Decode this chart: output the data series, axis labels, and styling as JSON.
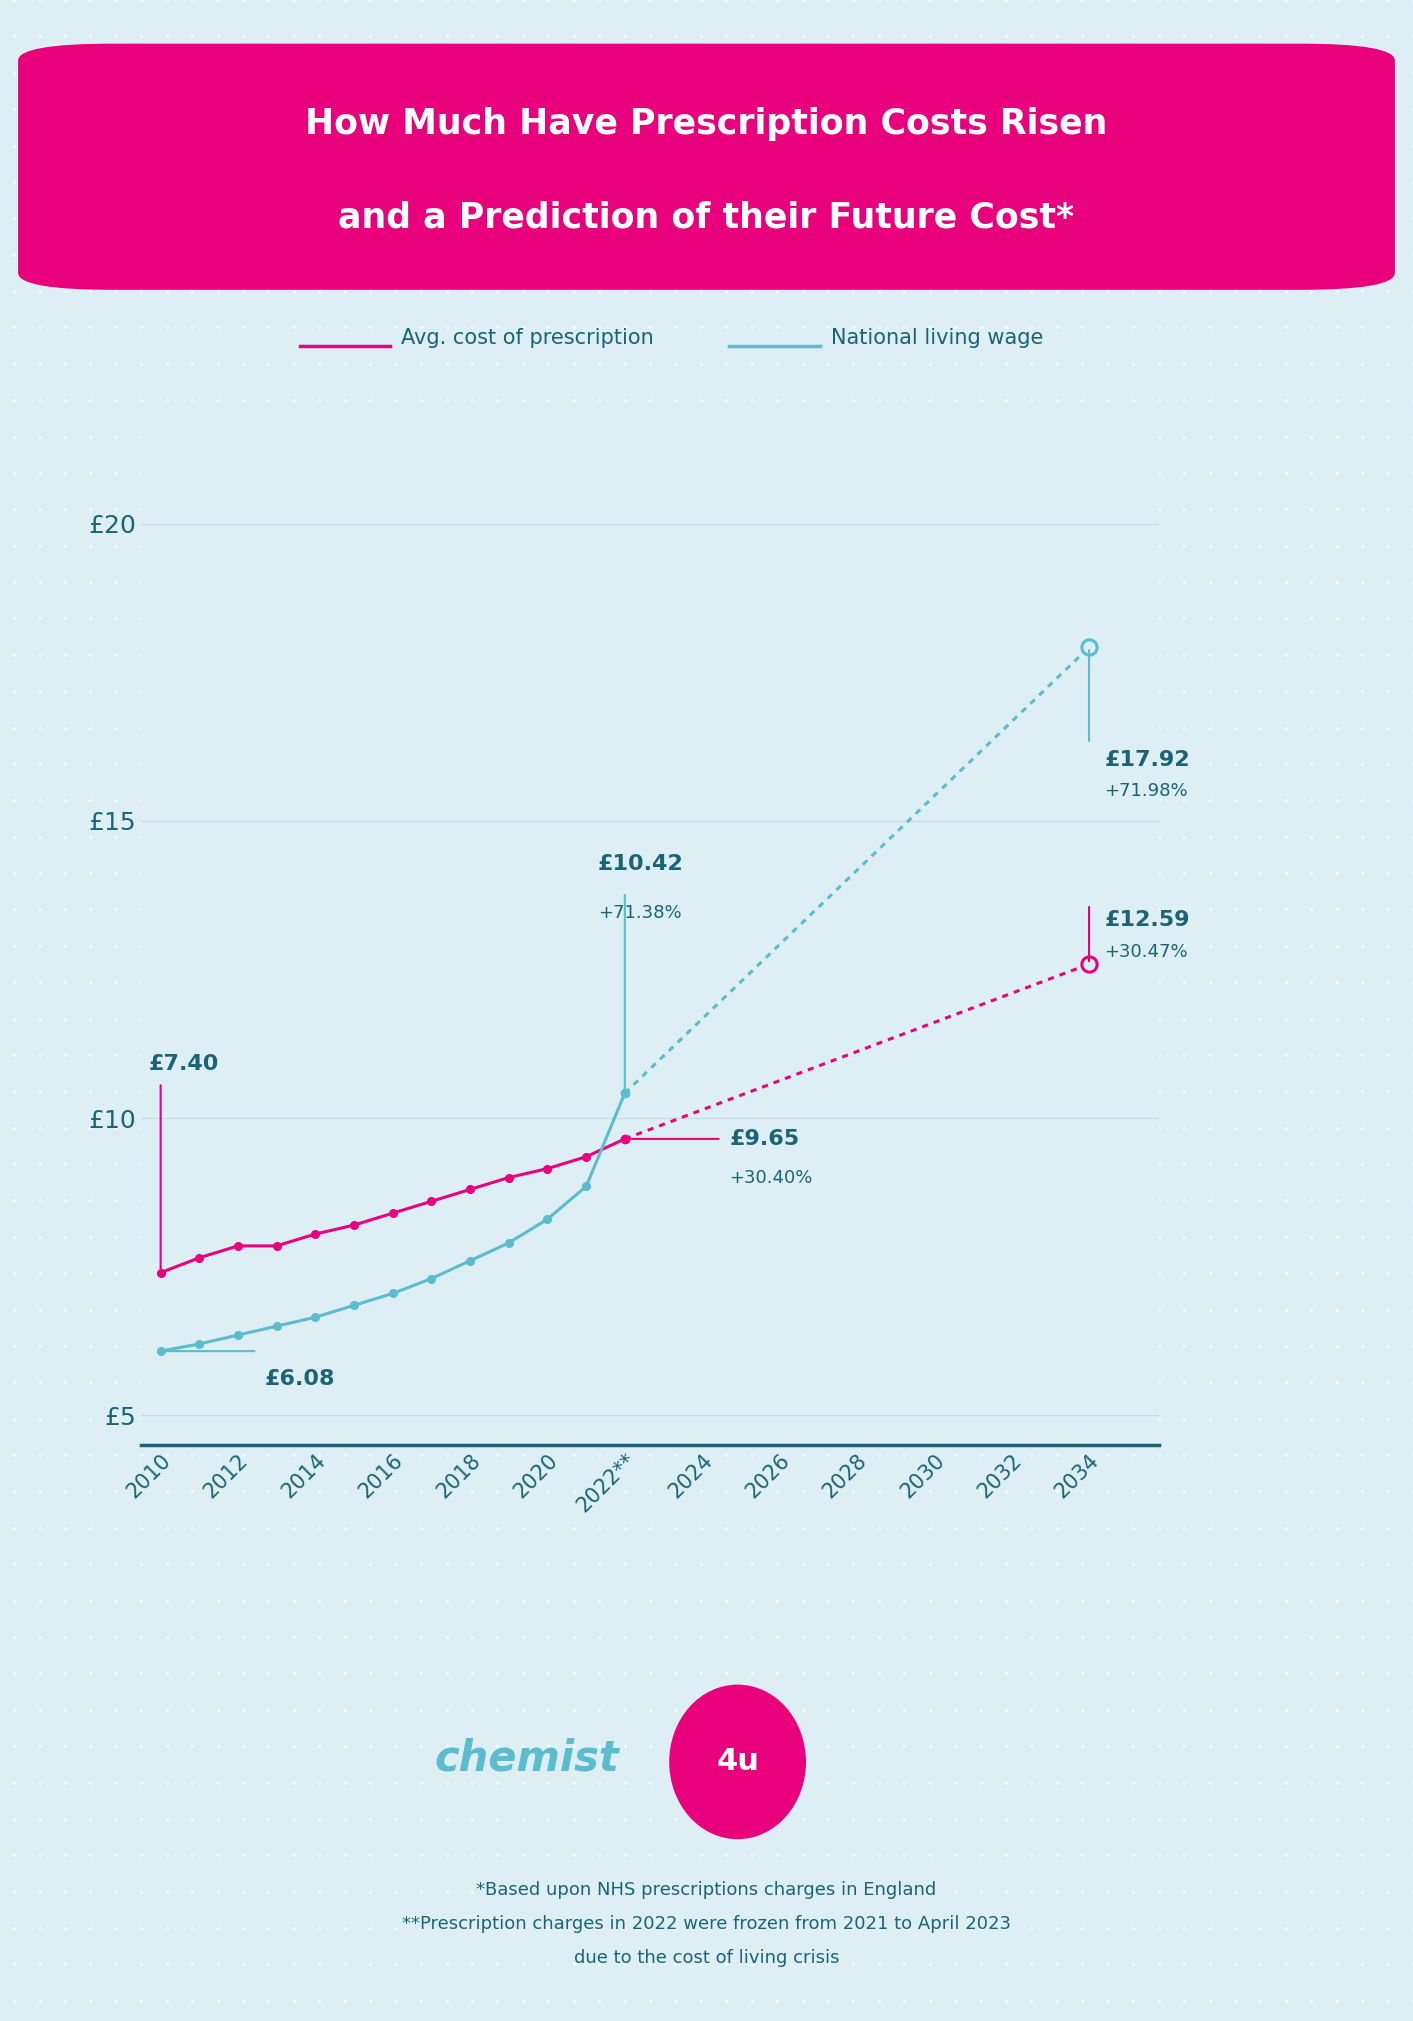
{
  "title_line1": "How Much Have Prescription Costs Risen",
  "title_line2": "and a Prediction of their Future Cost*",
  "bg_color": "#ddeef5",
  "plot_bg_color": "#ddeef5",
  "title_bg_color": "#e8007d",
  "title_text_color": "#ffffff",
  "legend_label1": "Avg. cost of prescription",
  "legend_label2": "National living wage",
  "pink_color": "#e8007d",
  "blue_color": "#5abccc",
  "dark_teal": "#1a6475",
  "grid_color": "#c5dde8",
  "footnote1": "*Based upon NHS prescriptions charges in England",
  "footnote2": "**Prescription charges in 2022 were frozen from 2021 to April 2023",
  "footnote3": "due to the cost of living crisis",
  "prescription_years": [
    2010,
    2011,
    2012,
    2013,
    2014,
    2015,
    2016,
    2017,
    2018,
    2019,
    2020,
    2021,
    2022
  ],
  "prescription_values": [
    7.4,
    7.65,
    7.85,
    7.85,
    8.05,
    8.2,
    8.4,
    8.6,
    8.8,
    9.0,
    9.15,
    9.35,
    9.65
  ],
  "prescription_forecast_years": [
    2022,
    2034
  ],
  "prescription_forecast_values": [
    9.65,
    12.59
  ],
  "wage_years": [
    2010,
    2011,
    2012,
    2013,
    2014,
    2015,
    2016,
    2017,
    2018,
    2019,
    2020,
    2021,
    2022
  ],
  "wage_values": [
    6.08,
    6.2,
    6.35,
    6.5,
    6.65,
    6.85,
    7.05,
    7.3,
    7.6,
    7.9,
    8.3,
    8.85,
    10.42
  ],
  "wage_forecast_years": [
    2022,
    2034
  ],
  "wage_forecast_values": [
    10.42,
    17.92
  ],
  "ylim": [
    4.5,
    21.5
  ],
  "xlim": [
    2009.5,
    2035.8
  ],
  "yticks": [
    5,
    10,
    15,
    20
  ],
  "ytick_labels": [
    "£5",
    "£10",
    "£15",
    "£20"
  ],
  "xtick_positions": [
    2010,
    2012,
    2014,
    2016,
    2018,
    2020,
    2022,
    2024,
    2026,
    2028,
    2030,
    2032,
    2034
  ],
  "xtick_labels": [
    "2010",
    "2012",
    "2014",
    "2016",
    "2018",
    "2020",
    "2022**",
    "2024",
    "2026",
    "2028",
    "2030",
    "2032",
    "2034"
  ]
}
